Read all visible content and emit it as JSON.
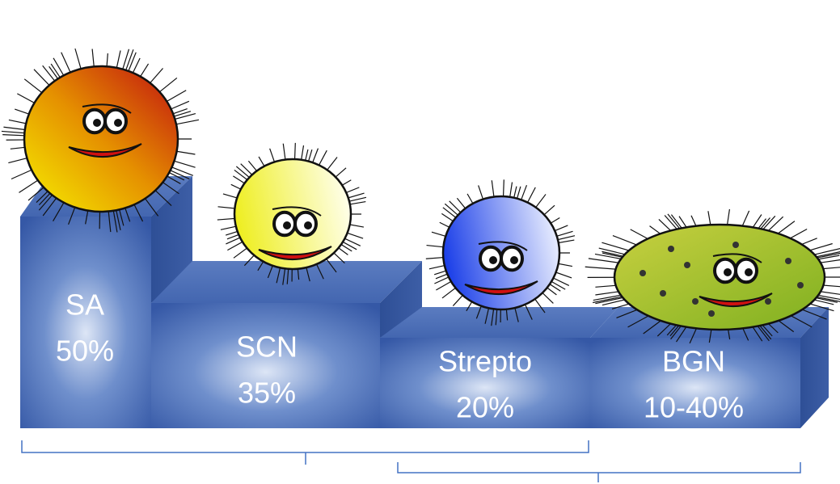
{
  "blocks": [
    {
      "name": "SA",
      "value": "50%"
    },
    {
      "name": "SCN",
      "value": "35%"
    },
    {
      "name": "Strepto",
      "value": "20%"
    },
    {
      "name": "BGN",
      "value": "10-40%"
    }
  ]
}
